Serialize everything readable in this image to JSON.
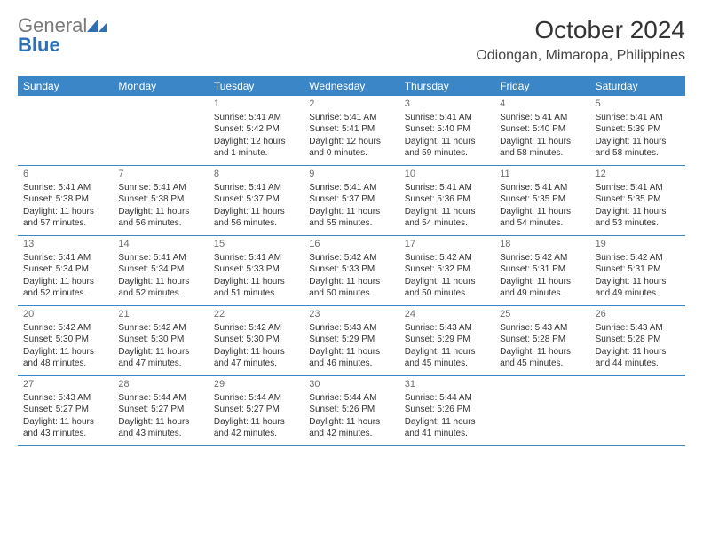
{
  "brand": {
    "word1": "General",
    "word2": "Blue",
    "blue_hex": "#2f6fb3",
    "gray_hex": "#7a7a7a",
    "icon_fill": "#2f6fb3"
  },
  "header": {
    "month_title": "October 2024",
    "location": "Odiongan, Mimaropa, Philippines"
  },
  "calendar": {
    "header_bg": "#3b86c7",
    "header_fg": "#ffffff",
    "rule_color": "#3b86c7",
    "daynum_color": "#6d6d6d",
    "text_color": "#333333",
    "day_headers": [
      "Sunday",
      "Monday",
      "Tuesday",
      "Wednesday",
      "Thursday",
      "Friday",
      "Saturday"
    ],
    "weeks": [
      [
        null,
        null,
        {
          "n": "1",
          "sunrise": "5:41 AM",
          "sunset": "5:42 PM",
          "daylight": "12 hours and 1 minute."
        },
        {
          "n": "2",
          "sunrise": "5:41 AM",
          "sunset": "5:41 PM",
          "daylight": "12 hours and 0 minutes."
        },
        {
          "n": "3",
          "sunrise": "5:41 AM",
          "sunset": "5:40 PM",
          "daylight": "11 hours and 59 minutes."
        },
        {
          "n": "4",
          "sunrise": "5:41 AM",
          "sunset": "5:40 PM",
          "daylight": "11 hours and 58 minutes."
        },
        {
          "n": "5",
          "sunrise": "5:41 AM",
          "sunset": "5:39 PM",
          "daylight": "11 hours and 58 minutes."
        }
      ],
      [
        {
          "n": "6",
          "sunrise": "5:41 AM",
          "sunset": "5:38 PM",
          "daylight": "11 hours and 57 minutes."
        },
        {
          "n": "7",
          "sunrise": "5:41 AM",
          "sunset": "5:38 PM",
          "daylight": "11 hours and 56 minutes."
        },
        {
          "n": "8",
          "sunrise": "5:41 AM",
          "sunset": "5:37 PM",
          "daylight": "11 hours and 56 minutes."
        },
        {
          "n": "9",
          "sunrise": "5:41 AM",
          "sunset": "5:37 PM",
          "daylight": "11 hours and 55 minutes."
        },
        {
          "n": "10",
          "sunrise": "5:41 AM",
          "sunset": "5:36 PM",
          "daylight": "11 hours and 54 minutes."
        },
        {
          "n": "11",
          "sunrise": "5:41 AM",
          "sunset": "5:35 PM",
          "daylight": "11 hours and 54 minutes."
        },
        {
          "n": "12",
          "sunrise": "5:41 AM",
          "sunset": "5:35 PM",
          "daylight": "11 hours and 53 minutes."
        }
      ],
      [
        {
          "n": "13",
          "sunrise": "5:41 AM",
          "sunset": "5:34 PM",
          "daylight": "11 hours and 52 minutes."
        },
        {
          "n": "14",
          "sunrise": "5:41 AM",
          "sunset": "5:34 PM",
          "daylight": "11 hours and 52 minutes."
        },
        {
          "n": "15",
          "sunrise": "5:41 AM",
          "sunset": "5:33 PM",
          "daylight": "11 hours and 51 minutes."
        },
        {
          "n": "16",
          "sunrise": "5:42 AM",
          "sunset": "5:33 PM",
          "daylight": "11 hours and 50 minutes."
        },
        {
          "n": "17",
          "sunrise": "5:42 AM",
          "sunset": "5:32 PM",
          "daylight": "11 hours and 50 minutes."
        },
        {
          "n": "18",
          "sunrise": "5:42 AM",
          "sunset": "5:31 PM",
          "daylight": "11 hours and 49 minutes."
        },
        {
          "n": "19",
          "sunrise": "5:42 AM",
          "sunset": "5:31 PM",
          "daylight": "11 hours and 49 minutes."
        }
      ],
      [
        {
          "n": "20",
          "sunrise": "5:42 AM",
          "sunset": "5:30 PM",
          "daylight": "11 hours and 48 minutes."
        },
        {
          "n": "21",
          "sunrise": "5:42 AM",
          "sunset": "5:30 PM",
          "daylight": "11 hours and 47 minutes."
        },
        {
          "n": "22",
          "sunrise": "5:42 AM",
          "sunset": "5:30 PM",
          "daylight": "11 hours and 47 minutes."
        },
        {
          "n": "23",
          "sunrise": "5:43 AM",
          "sunset": "5:29 PM",
          "daylight": "11 hours and 46 minutes."
        },
        {
          "n": "24",
          "sunrise": "5:43 AM",
          "sunset": "5:29 PM",
          "daylight": "11 hours and 45 minutes."
        },
        {
          "n": "25",
          "sunrise": "5:43 AM",
          "sunset": "5:28 PM",
          "daylight": "11 hours and 45 minutes."
        },
        {
          "n": "26",
          "sunrise": "5:43 AM",
          "sunset": "5:28 PM",
          "daylight": "11 hours and 44 minutes."
        }
      ],
      [
        {
          "n": "27",
          "sunrise": "5:43 AM",
          "sunset": "5:27 PM",
          "daylight": "11 hours and 43 minutes."
        },
        {
          "n": "28",
          "sunrise": "5:44 AM",
          "sunset": "5:27 PM",
          "daylight": "11 hours and 43 minutes."
        },
        {
          "n": "29",
          "sunrise": "5:44 AM",
          "sunset": "5:27 PM",
          "daylight": "11 hours and 42 minutes."
        },
        {
          "n": "30",
          "sunrise": "5:44 AM",
          "sunset": "5:26 PM",
          "daylight": "11 hours and 42 minutes."
        },
        {
          "n": "31",
          "sunrise": "5:44 AM",
          "sunset": "5:26 PM",
          "daylight": "11 hours and 41 minutes."
        },
        null,
        null
      ]
    ],
    "labels": {
      "sunrise_prefix": "Sunrise: ",
      "sunset_prefix": "Sunset: ",
      "daylight_prefix": "Daylight: "
    }
  }
}
